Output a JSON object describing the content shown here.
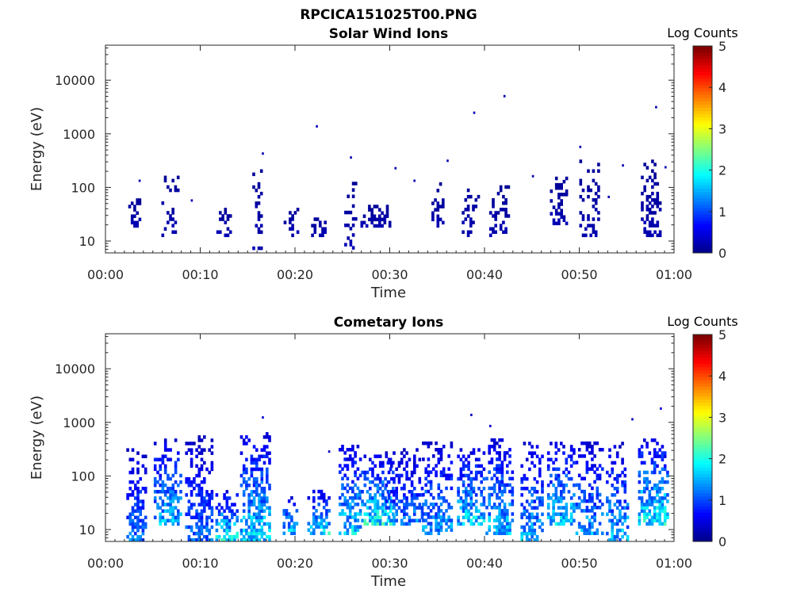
{
  "figure": {
    "title": "RPCICA151025T00.PNG",
    "colormap": [
      "#00008f",
      "#0000ff",
      "#0080ff",
      "#00ffff",
      "#80ff80",
      "#ffff00",
      "#ff8000",
      "#ff0000",
      "#800000"
    ]
  },
  "chart_data": [
    {
      "type": "heatmap",
      "title": "Solar Wind Ions",
      "xlabel": "Time",
      "ylabel": "Energy (eV)",
      "x_ticks": [
        "00:00",
        "00:10",
        "00:20",
        "00:30",
        "00:40",
        "00:50",
        "01:00"
      ],
      "x_range_min": [
        0,
        60
      ],
      "y_ticks": [
        "10",
        "100",
        "1000",
        "10000"
      ],
      "y_scale": "log",
      "y_range_eV": [
        6,
        45000
      ],
      "colorbar": {
        "label": "Log Counts",
        "ticks": [
          "0",
          "1",
          "2",
          "3",
          "4",
          "5"
        ],
        "range": [
          0,
          5
        ]
      },
      "clusters": [
        {
          "t": 3.0,
          "e_lo": 18,
          "e_hi": 60,
          "c": 0.2,
          "dens": 0.6,
          "w": 0.6
        },
        {
          "t": 6.8,
          "e_lo": 12,
          "e_hi": 160,
          "c": 0.2,
          "dens": 0.4,
          "w": 0.9
        },
        {
          "t": 12.5,
          "e_lo": 12,
          "e_hi": 40,
          "c": 0.2,
          "dens": 0.6,
          "w": 0.8
        },
        {
          "t": 16.0,
          "e_lo": 6,
          "e_hi": 250,
          "c": 0.2,
          "dens": 0.4,
          "w": 0.5
        },
        {
          "t": 19.5,
          "e_lo": 12,
          "e_hi": 40,
          "c": 0.2,
          "dens": 0.5,
          "w": 0.7
        },
        {
          "t": 22.5,
          "e_lo": 12,
          "e_hi": 30,
          "c": 0.2,
          "dens": 0.6,
          "w": 0.8
        },
        {
          "t": 25.8,
          "e_lo": 7,
          "e_hi": 120,
          "c": 0.2,
          "dens": 0.5,
          "w": 0.6
        },
        {
          "t": 28.5,
          "e_lo": 18,
          "e_hi": 45,
          "c": 0.2,
          "dens": 0.8,
          "w": 1.6
        },
        {
          "t": 35.0,
          "e_lo": 18,
          "e_hi": 110,
          "c": 0.2,
          "dens": 0.5,
          "w": 0.6
        },
        {
          "t": 38.5,
          "e_lo": 12,
          "e_hi": 100,
          "c": 0.2,
          "dens": 0.5,
          "w": 0.9
        },
        {
          "t": 41.5,
          "e_lo": 12,
          "e_hi": 100,
          "c": 0.2,
          "dens": 0.5,
          "w": 1.0
        },
        {
          "t": 47.8,
          "e_lo": 20,
          "e_hi": 150,
          "c": 0.2,
          "dens": 0.6,
          "w": 0.9
        },
        {
          "t": 51.0,
          "e_lo": 12,
          "e_hi": 300,
          "c": 0.2,
          "dens": 0.5,
          "w": 1.0
        },
        {
          "t": 57.5,
          "e_lo": 12,
          "e_hi": 300,
          "c": 0.2,
          "dens": 0.6,
          "w": 1.0
        }
      ],
      "points": [
        {
          "t": 3.5,
          "e": 140,
          "c": 0.2
        },
        {
          "t": 9.0,
          "e": 60,
          "c": 0.2
        },
        {
          "t": 16.5,
          "e": 450,
          "c": 0.2
        },
        {
          "t": 22.2,
          "e": 1450,
          "c": 0.2
        },
        {
          "t": 25.8,
          "e": 380,
          "c": 0.2
        },
        {
          "t": 30.5,
          "e": 240,
          "c": 0.2
        },
        {
          "t": 32.5,
          "e": 140,
          "c": 0.2
        },
        {
          "t": 36.0,
          "e": 330,
          "c": 0.2
        },
        {
          "t": 38.8,
          "e": 2600,
          "c": 0.2
        },
        {
          "t": 42.0,
          "e": 5300,
          "c": 0.2
        },
        {
          "t": 45.0,
          "e": 170,
          "c": 0.2
        },
        {
          "t": 50.0,
          "e": 600,
          "c": 0.2
        },
        {
          "t": 53.0,
          "e": 70,
          "c": 0.2
        },
        {
          "t": 54.5,
          "e": 270,
          "c": 0.2
        },
        {
          "t": 58.0,
          "e": 3300,
          "c": 0.2
        },
        {
          "t": 59.0,
          "e": 250,
          "c": 0.2
        }
      ]
    },
    {
      "type": "heatmap",
      "title": "Cometary Ions",
      "xlabel": "Time",
      "ylabel": "Energy (eV)",
      "x_ticks": [
        "00:00",
        "00:10",
        "00:20",
        "00:30",
        "00:40",
        "00:50",
        "01:00"
      ],
      "x_range_min": [
        0,
        60
      ],
      "y_ticks": [
        "10",
        "100",
        "1000",
        "10000"
      ],
      "y_scale": "log",
      "y_range_eV": [
        6,
        45000
      ],
      "colorbar": {
        "label": "Log Counts",
        "ticks": [
          "0",
          "1",
          "2",
          "3",
          "4",
          "5"
        ],
        "range": [
          0,
          5
        ]
      },
      "clusters": [
        {
          "t": 3.2,
          "e_lo": 6,
          "e_hi": 300,
          "c": 1.3,
          "dens": 0.8,
          "w": 1.0
        },
        {
          "t": 6.5,
          "e_lo": 12,
          "e_hi": 500,
          "c": 1.6,
          "dens": 0.8,
          "w": 1.4
        },
        {
          "t": 9.8,
          "e_lo": 6,
          "e_hi": 500,
          "c": 1.2,
          "dens": 0.8,
          "w": 1.4
        },
        {
          "t": 12.8,
          "e_lo": 6,
          "e_hi": 50,
          "c": 2.0,
          "dens": 0.8,
          "w": 1.2
        },
        {
          "t": 15.8,
          "e_lo": 6,
          "e_hi": 600,
          "c": 1.8,
          "dens": 0.8,
          "w": 1.6
        },
        {
          "t": 19.5,
          "e_lo": 8,
          "e_hi": 40,
          "c": 1.8,
          "dens": 0.8,
          "w": 0.8
        },
        {
          "t": 22.5,
          "e_lo": 8,
          "e_hi": 50,
          "c": 1.9,
          "dens": 0.8,
          "w": 1.2
        },
        {
          "t": 25.8,
          "e_lo": 8,
          "e_hi": 350,
          "c": 1.8,
          "dens": 0.7,
          "w": 1.2
        },
        {
          "t": 28.5,
          "e_lo": 12,
          "e_hi": 250,
          "c": 2.0,
          "dens": 0.8,
          "w": 1.8
        },
        {
          "t": 31.5,
          "e_lo": 12,
          "e_hi": 300,
          "c": 1.3,
          "dens": 0.7,
          "w": 2.0
        },
        {
          "t": 35.0,
          "e_lo": 8,
          "e_hi": 400,
          "c": 1.5,
          "dens": 0.7,
          "w": 1.6
        },
        {
          "t": 38.5,
          "e_lo": 12,
          "e_hi": 300,
          "c": 1.8,
          "dens": 0.8,
          "w": 1.4
        },
        {
          "t": 41.5,
          "e_lo": 8,
          "e_hi": 500,
          "c": 1.7,
          "dens": 0.8,
          "w": 1.4
        },
        {
          "t": 45.0,
          "e_lo": 6,
          "e_hi": 400,
          "c": 1.6,
          "dens": 0.7,
          "w": 1.2
        },
        {
          "t": 48.0,
          "e_lo": 12,
          "e_hi": 400,
          "c": 1.8,
          "dens": 0.8,
          "w": 1.4
        },
        {
          "t": 51.0,
          "e_lo": 8,
          "e_hi": 450,
          "c": 1.5,
          "dens": 0.7,
          "w": 1.4
        },
        {
          "t": 54.0,
          "e_lo": 6,
          "e_hi": 400,
          "c": 1.6,
          "dens": 0.7,
          "w": 1.2
        },
        {
          "t": 57.8,
          "e_lo": 12,
          "e_hi": 500,
          "c": 2.0,
          "dens": 0.8,
          "w": 1.6
        }
      ],
      "points": [
        {
          "t": 16.5,
          "e": 1300,
          "c": 0.4
        },
        {
          "t": 23.5,
          "e": 300,
          "c": 0.3
        },
        {
          "t": 38.5,
          "e": 1450,
          "c": 0.3
        },
        {
          "t": 55.5,
          "e": 1200,
          "c": 0.3
        },
        {
          "t": 58.5,
          "e": 1900,
          "c": 0.4
        },
        {
          "t": 40.5,
          "e": 900,
          "c": 0.3
        }
      ]
    }
  ]
}
